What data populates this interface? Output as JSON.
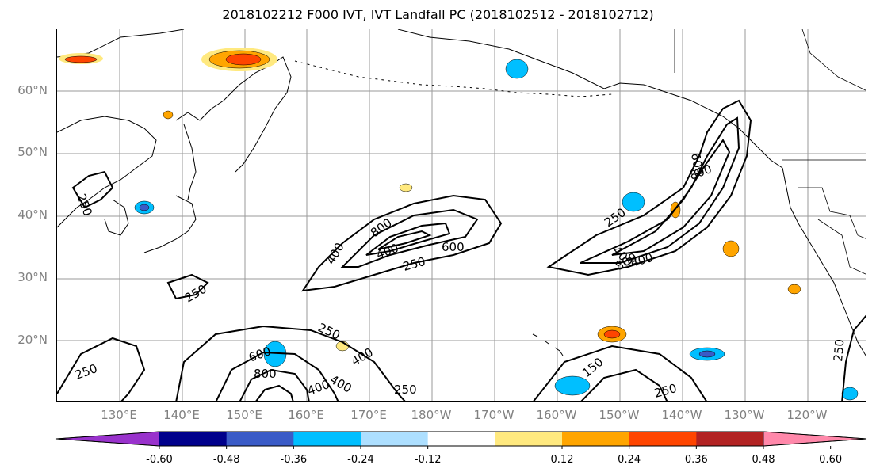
{
  "title": "2018102212 F000 IVT, IVT Landfall PC (2018102512 - 2018102712)",
  "map": {
    "lat_labels": [
      "60°N",
      "50°N",
      "40°N",
      "30°N",
      "20°N"
    ],
    "lon_labels": [
      "130°E",
      "140°E",
      "150°E",
      "160°E",
      "170°E",
      "180°W",
      "170°W",
      "160°W",
      "150°W",
      "140°W",
      "130°W",
      "120°W"
    ],
    "contour_labels": [
      {
        "text": "250"
      },
      {
        "text": "250"
      },
      {
        "text": "250"
      },
      {
        "text": "250"
      },
      {
        "text": "250"
      },
      {
        "text": "250"
      },
      {
        "text": "250"
      },
      {
        "text": "250"
      },
      {
        "text": "400"
      },
      {
        "text": "800"
      },
      {
        "text": "400"
      },
      {
        "text": "600"
      },
      {
        "text": "600"
      },
      {
        "text": "800"
      },
      {
        "text": "400"
      },
      {
        "text": "400"
      },
      {
        "text": "800"
      },
      {
        "text": "400"
      },
      {
        "text": "600"
      },
      {
        "text": "800"
      },
      {
        "text": "400"
      },
      {
        "text": "150"
      },
      {
        "text": "250"
      },
      {
        "text": "400"
      }
    ]
  },
  "colorbar": {
    "tick_labels": [
      "-0.60",
      "-0.48",
      "-0.36",
      "-0.24",
      "-0.12",
      "0.12",
      "0.24",
      "0.36",
      "0.48",
      "0.60"
    ],
    "colors": [
      "#9932CC",
      "#00008B",
      "#3A5BC7",
      "#00BFFF",
      "#ADDFFF",
      "#FFFFFF",
      "#FFE97F",
      "#FFA500",
      "#FF4500",
      "#B22222",
      "#FF88AA"
    ]
  }
}
